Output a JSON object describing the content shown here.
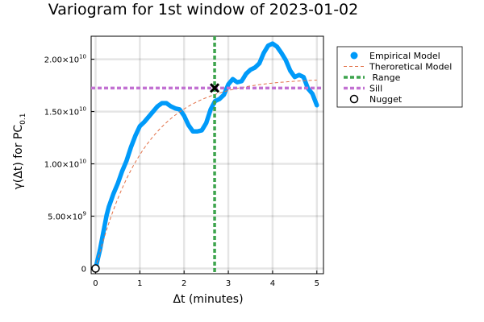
{
  "chart_data": {
    "type": "line",
    "title": "Variogram for 1st window of 2023-01-02",
    "xlabel": "Δt (minutes)",
    "ylabel_main": "γ(Δt) for PC",
    "ylabel_sub": "0.1",
    "xlim": [
      -0.1,
      5.15
    ],
    "ylim": [
      -500000000.0,
      22200000000.0
    ],
    "xticks": [
      0,
      1,
      2,
      3,
      4,
      5
    ],
    "xtick_labels": [
      "0",
      "1",
      "2",
      "3",
      "4",
      "5"
    ],
    "yticks": [
      0,
      5000000000.0,
      10000000000.0,
      15000000000.0,
      20000000000.0
    ],
    "ytick_labels": [
      {
        "mant": "0",
        "exp": ""
      },
      {
        "mant": "5.00×10",
        "exp": "9"
      },
      {
        "mant": "1.00×10",
        "exp": "10"
      },
      {
        "mant": "1.50×10",
        "exp": "10"
      },
      {
        "mant": "2.00×10",
        "exp": "10"
      }
    ],
    "grid": true,
    "legend_position": "top-right-outside",
    "series": [
      {
        "name": "Empirical Model",
        "kind": "thick-line",
        "color": "#009af9",
        "x": [
          0,
          0.05,
          0.1,
          0.15,
          0.2,
          0.25,
          0.3,
          0.35,
          0.4,
          0.5,
          0.6,
          0.7,
          0.8,
          0.9,
          1.0,
          1.1,
          1.2,
          1.3,
          1.4,
          1.5,
          1.6,
          1.7,
          1.8,
          1.9,
          2.0,
          2.1,
          2.2,
          2.3,
          2.4,
          2.5,
          2.6,
          2.7,
          2.8,
          2.9,
          3.0,
          3.1,
          3.2,
          3.3,
          3.4,
          3.5,
          3.6,
          3.7,
          3.8,
          3.9,
          4.0,
          4.1,
          4.2,
          4.3,
          4.4,
          4.5,
          4.6,
          4.7,
          4.8,
          4.9,
          5.0
        ],
        "y": [
          0.0,
          900000000.0,
          1800000000.0,
          2900000000.0,
          4000000000.0,
          5100000000.0,
          5900000000.0,
          6500000000.0,
          7100000000.0,
          8100000000.0,
          9300000000.0,
          10300000000.0,
          11600000000.0,
          12700000000.0,
          13600000000.0,
          14000000000.0,
          14500000000.0,
          15000000000.0,
          15500000000.0,
          15800000000.0,
          15800000000.0,
          15500000000.0,
          15300000000.0,
          15200000000.0,
          14600000000.0,
          13700000000.0,
          13100000000.0,
          13100000000.0,
          13200000000.0,
          13900000000.0,
          15200000000.0,
          16000000000.0,
          16200000000.0,
          16600000000.0,
          17600000000.0,
          18100000000.0,
          17800000000.0,
          17900000000.0,
          18600000000.0,
          19000000000.0,
          19200000000.0,
          19600000000.0,
          20600000000.0,
          21300000000.0,
          21500000000.0,
          21200000000.0,
          20600000000.0,
          19900000000.0,
          18900000000.0,
          18300000000.0,
          18500000000.0,
          18300000000.0,
          17200000000.0,
          16700000000.0,
          15600000000.0
        ]
      },
      {
        "name": "Theroretical Model",
        "kind": "dashed",
        "color": "#e26f46",
        "nugget": 0,
        "sill": 18200000000.0,
        "range": 1.1,
        "x_max": 5.0
      },
      {
        "name": " Range",
        "kind": "vline",
        "color": "#3da44d",
        "x": 2.69
      },
      {
        "name": "Sill",
        "kind": "hline",
        "color": "#c271d2",
        "y": 17250000000.0
      },
      {
        "name": "Nugget",
        "kind": "marker",
        "color": "#000000",
        "x": 0,
        "y": 0
      }
    ],
    "annotations": [
      {
        "name": "intersection",
        "x": 2.69,
        "y": 17250000000.0,
        "color": "#000000"
      }
    ]
  }
}
